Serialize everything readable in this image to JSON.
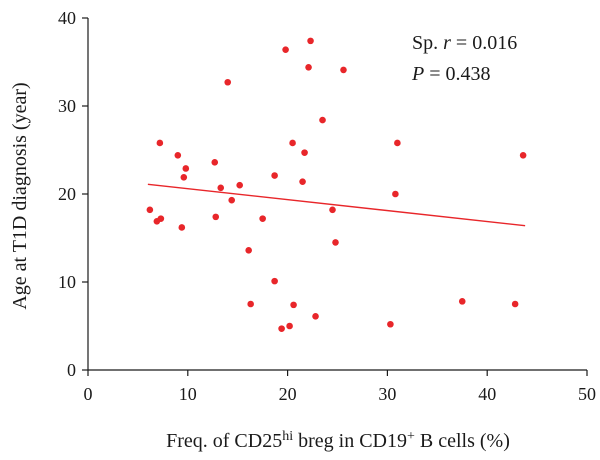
{
  "chart_data": {
    "type": "scatter",
    "xlabel": {
      "prefix": "Freq. of CD25",
      "sup1": "hi",
      "middle": " breg in CD19",
      "sup2": "+",
      "suffix": " B cells (%)"
    },
    "ylabel": "Age at T1D diagnosis (year)",
    "xlim": [
      0,
      50
    ],
    "ylim": [
      0,
      40
    ],
    "xticks": [
      "0",
      "10",
      "20",
      "30",
      "40",
      "50"
    ],
    "yticks": [
      "0",
      "10",
      "20",
      "30",
      "40"
    ],
    "grid": false,
    "point_color": "#e8262a",
    "line_color": "#e8262a",
    "annotation": {
      "line1_prefix": "Sp. ",
      "line1_var": "r",
      "line1_value": " = 0.016",
      "line2_var": "P",
      "line2_value": " = 0.438"
    },
    "regression": {
      "x": [
        6.0,
        43.8
      ],
      "y": [
        21.1,
        16.4
      ]
    },
    "points": [
      {
        "x": 6.2,
        "y": 18.2
      },
      {
        "x": 6.9,
        "y": 16.9
      },
      {
        "x": 7.2,
        "y": 25.8
      },
      {
        "x": 7.3,
        "y": 17.2
      },
      {
        "x": 9.0,
        "y": 24.4
      },
      {
        "x": 9.4,
        "y": 16.2
      },
      {
        "x": 9.6,
        "y": 21.9
      },
      {
        "x": 9.8,
        "y": 22.9
      },
      {
        "x": 12.7,
        "y": 23.6
      },
      {
        "x": 12.8,
        "y": 17.4
      },
      {
        "x": 13.3,
        "y": 20.7
      },
      {
        "x": 14.0,
        "y": 32.7
      },
      {
        "x": 14.4,
        "y": 19.3
      },
      {
        "x": 15.2,
        "y": 21.0
      },
      {
        "x": 16.1,
        "y": 13.6
      },
      {
        "x": 16.3,
        "y": 7.5
      },
      {
        "x": 17.5,
        "y": 17.2
      },
      {
        "x": 18.7,
        "y": 10.1
      },
      {
        "x": 18.7,
        "y": 22.1
      },
      {
        "x": 19.4,
        "y": 4.7
      },
      {
        "x": 19.8,
        "y": 36.4
      },
      {
        "x": 20.2,
        "y": 5.0
      },
      {
        "x": 20.5,
        "y": 25.8
      },
      {
        "x": 20.6,
        "y": 7.4
      },
      {
        "x": 21.5,
        "y": 21.4
      },
      {
        "x": 21.7,
        "y": 24.7
      },
      {
        "x": 22.1,
        "y": 34.4
      },
      {
        "x": 22.3,
        "y": 37.4
      },
      {
        "x": 22.8,
        "y": 6.1
      },
      {
        "x": 23.5,
        "y": 28.4
      },
      {
        "x": 25.6,
        "y": 34.1
      },
      {
        "x": 24.5,
        "y": 18.2
      },
      {
        "x": 24.8,
        "y": 14.5
      },
      {
        "x": 30.3,
        "y": 5.2
      },
      {
        "x": 30.8,
        "y": 20.0
      },
      {
        "x": 31.0,
        "y": 25.8
      },
      {
        "x": 37.5,
        "y": 7.8
      },
      {
        "x": 42.8,
        "y": 7.5
      },
      {
        "x": 43.6,
        "y": 24.4
      }
    ]
  }
}
